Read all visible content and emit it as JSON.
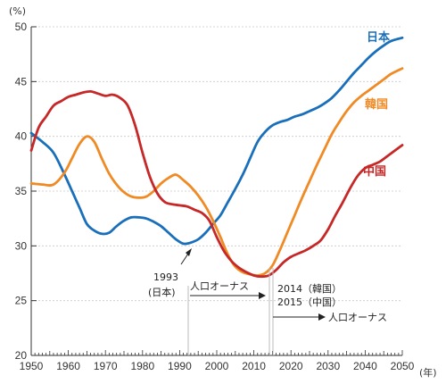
{
  "chart_data": {
    "type": "line",
    "title": "",
    "xlabel": "",
    "ylabel": "",
    "y_unit": "(%)",
    "x_unit": "(年)",
    "xlim": [
      1950,
      2050
    ],
    "ylim": [
      20,
      50
    ],
    "x_ticks": [
      1950,
      1960,
      1970,
      1980,
      1990,
      2000,
      2010,
      2020,
      2030,
      2040,
      2050
    ],
    "y_ticks": [
      20,
      25,
      30,
      35,
      40,
      45,
      50
    ],
    "grid": "dashed-horizontal",
    "series": [
      {
        "name": "日本",
        "color": "#1a6fba",
        "x": [
          1950,
          1953,
          1956,
          1959,
          1961,
          1963,
          1965,
          1967,
          1969,
          1971,
          1973,
          1975,
          1977,
          1979,
          1981,
          1983,
          1985,
          1987,
          1989,
          1991,
          1993,
          1995,
          1997,
          1999,
          2001,
          2003,
          2005,
          2007,
          2009,
          2011,
          2013,
          2015,
          2017,
          2019,
          2021,
          2023,
          2025,
          2027,
          2029,
          2031,
          2033,
          2035,
          2037,
          2039,
          2041,
          2043,
          2045,
          2047,
          2050
        ],
        "y": [
          40.3,
          39.5,
          38.5,
          36.5,
          35.0,
          33.5,
          32.0,
          31.4,
          31.1,
          31.2,
          31.8,
          32.3,
          32.6,
          32.6,
          32.5,
          32.2,
          31.8,
          31.2,
          30.6,
          30.2,
          30.3,
          30.6,
          31.2,
          32.0,
          32.8,
          34.0,
          35.2,
          36.5,
          38.0,
          39.5,
          40.4,
          41.0,
          41.3,
          41.5,
          41.8,
          42.0,
          42.3,
          42.6,
          43.0,
          43.5,
          44.2,
          45.0,
          45.8,
          46.5,
          47.2,
          47.8,
          48.3,
          48.7,
          49.0
        ]
      },
      {
        "name": "韓国",
        "color": "#f08a24",
        "x": [
          1950,
          1953,
          1956,
          1959,
          1961,
          1963,
          1965,
          1967,
          1969,
          1971,
          1973,
          1975,
          1977,
          1979,
          1981,
          1983,
          1985,
          1987,
          1989,
          1991,
          1993,
          1995,
          1997,
          1999,
          2001,
          2003,
          2005,
          2007,
          2009,
          2011,
          2013,
          2015,
          2017,
          2019,
          2021,
          2023,
          2025,
          2027,
          2029,
          2031,
          2033,
          2035,
          2037,
          2039,
          2041,
          2043,
          2045,
          2047,
          2050
        ],
        "y": [
          35.7,
          35.6,
          35.6,
          36.7,
          38.0,
          39.3,
          40.0,
          39.5,
          38.0,
          36.6,
          35.6,
          34.9,
          34.5,
          34.4,
          34.5,
          35.0,
          35.7,
          36.2,
          36.5,
          36.0,
          35.4,
          34.6,
          33.6,
          32.3,
          30.8,
          29.2,
          28.1,
          27.6,
          27.4,
          27.3,
          27.5,
          28.2,
          29.6,
          31.2,
          32.8,
          34.4,
          35.9,
          37.4,
          38.8,
          40.2,
          41.3,
          42.3,
          43.1,
          43.7,
          44.2,
          44.7,
          45.2,
          45.7,
          46.2
        ]
      },
      {
        "name": "中国",
        "color": "#c62828",
        "x": [
          1950,
          1952,
          1954,
          1956,
          1958,
          1960,
          1962,
          1964,
          1966,
          1968,
          1970,
          1972,
          1974,
          1976,
          1978,
          1980,
          1982,
          1984,
          1986,
          1988,
          1990,
          1992,
          1994,
          1996,
          1998,
          2000,
          2002,
          2004,
          2006,
          2008,
          2010,
          2012,
          2014,
          2016,
          2018,
          2020,
          2022,
          2024,
          2026,
          2028,
          2030,
          2032,
          2034,
          2036,
          2038,
          2040,
          2042,
          2044,
          2046,
          2050
        ],
        "y": [
          38.7,
          40.8,
          41.8,
          42.8,
          43.2,
          43.6,
          43.8,
          44.0,
          44.1,
          43.9,
          43.7,
          43.8,
          43.5,
          42.8,
          41.0,
          38.5,
          36.3,
          34.8,
          34.0,
          33.8,
          33.7,
          33.6,
          33.3,
          33.0,
          32.3,
          30.8,
          29.5,
          28.6,
          28.0,
          27.6,
          27.3,
          27.2,
          27.3,
          27.8,
          28.5,
          29.0,
          29.3,
          29.6,
          30.0,
          30.5,
          31.5,
          32.8,
          34.0,
          35.3,
          36.4,
          37.1,
          37.4,
          37.7,
          38.2,
          39.2
        ]
      }
    ],
    "annotations": [
      {
        "id": "japan",
        "line1": "1993",
        "line2": "(日本)",
        "arrow_label": "人口オーナス"
      },
      {
        "id": "korea-china",
        "line1": "2014（韓国）",
        "line2": "2015（中国）",
        "arrow_label": "人口オーナス"
      }
    ]
  }
}
